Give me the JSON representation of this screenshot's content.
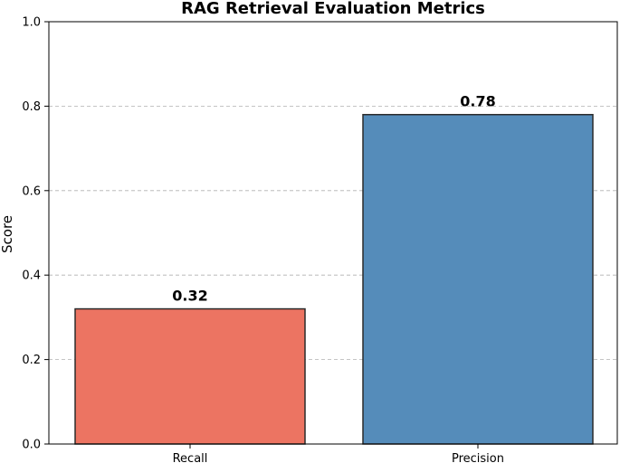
{
  "chart_data": {
    "type": "bar",
    "title": "RAG Retrieval Evaluation Metrics",
    "xlabel": "",
    "ylabel": "Score",
    "categories": [
      "Recall",
      "Precision"
    ],
    "values": [
      0.32,
      0.78
    ],
    "value_labels": [
      "0.32",
      "0.78"
    ],
    "bar_colors": [
      "#ec7462",
      "#558cba"
    ],
    "bar_edge_color": "#2b2b2b",
    "ylim": [
      0,
      1.0
    ],
    "yticks": [
      0.0,
      0.2,
      0.4,
      0.6,
      0.8,
      1.0
    ],
    "ytick_labels": [
      "0.0",
      "0.2",
      "0.4",
      "0.6",
      "0.8",
      "1.0"
    ],
    "grid": "horizontal-dashed",
    "legend": "none"
  }
}
